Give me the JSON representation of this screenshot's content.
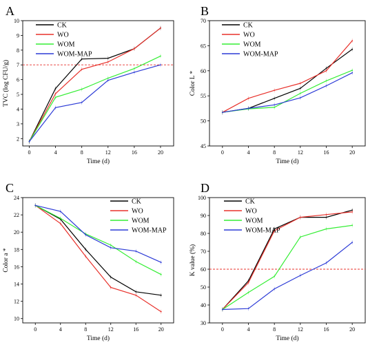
{
  "chart_data": [
    {
      "type": "line",
      "panel_label": "A",
      "x": [
        0,
        4,
        8,
        12,
        16,
        20
      ],
      "xlabel": "Time (d)",
      "ylabel": "TVC (log CFU/g)",
      "xlim": [
        -1,
        22
      ],
      "ylim": [
        1.5,
        10
      ],
      "xticks": [
        0,
        4,
        8,
        12,
        16,
        20
      ],
      "yticks": [
        2,
        3,
        4,
        5,
        6,
        7,
        8,
        9,
        10
      ],
      "reference_line": 7,
      "legend_position": "top-left",
      "series": [
        {
          "name": "CK",
          "color": "#000000",
          "values": [
            1.8,
            5.4,
            7.4,
            7.45,
            8.1,
            9.5
          ]
        },
        {
          "name": "WO",
          "color": "#e8302a",
          "values": [
            1.8,
            5.05,
            6.7,
            7.2,
            8.1,
            9.5
          ]
        },
        {
          "name": "WOM",
          "color": "#33ee33",
          "values": [
            1.8,
            4.8,
            5.35,
            6.1,
            6.75,
            7.6
          ]
        },
        {
          "name": "WOM-MAP",
          "color": "#2b3ad6",
          "values": [
            1.8,
            4.1,
            4.45,
            5.95,
            6.5,
            7.0
          ]
        }
      ]
    },
    {
      "type": "line",
      "panel_label": "B",
      "x": [
        0,
        4,
        8,
        12,
        16,
        20
      ],
      "xlabel": "Time (d)",
      "ylabel": "Color L *",
      "xlim": [
        -2,
        22
      ],
      "ylim": [
        45,
        70
      ],
      "xticks": [
        0,
        4,
        8,
        12,
        16,
        20
      ],
      "yticks": [
        45,
        50,
        55,
        60,
        65,
        70
      ],
      "legend_position": "top-left",
      "series": [
        {
          "name": "CK",
          "color": "#000000",
          "values": [
            51.7,
            52.5,
            54.5,
            56.5,
            60.5,
            64.3
          ]
        },
        {
          "name": "WO",
          "color": "#e8302a",
          "values": [
            51.7,
            54.5,
            56.1,
            57.5,
            60.0,
            66.0
          ]
        },
        {
          "name": "WOM",
          "color": "#33ee33",
          "values": [
            51.7,
            52.4,
            52.7,
            55.5,
            58.0,
            60.1
          ]
        },
        {
          "name": "WOM-MAP",
          "color": "#2b3ad6",
          "values": [
            51.7,
            52.5,
            53.2,
            54.6,
            57.0,
            59.6
          ]
        }
      ]
    },
    {
      "type": "line",
      "panel_label": "C",
      "x": [
        0,
        4,
        8,
        12,
        16,
        20
      ],
      "xlabel": "Time (d)",
      "ylabel": "Color a *",
      "xlim": [
        -2,
        22
      ],
      "ylim": [
        9.5,
        24
      ],
      "xticks": [
        0,
        4,
        8,
        12,
        16,
        20
      ],
      "yticks": [
        10,
        12,
        14,
        16,
        18,
        20,
        22,
        24
      ],
      "legend_position": "top-right",
      "series": [
        {
          "name": "CK",
          "color": "#000000",
          "values": [
            23.1,
            21.5,
            18.0,
            14.8,
            13.1,
            12.7
          ]
        },
        {
          "name": "WO",
          "color": "#e8302a",
          "values": [
            23.1,
            21.0,
            17.2,
            13.6,
            12.7,
            10.8
          ]
        },
        {
          "name": "WOM",
          "color": "#33ee33",
          "values": [
            23.1,
            21.6,
            19.8,
            18.5,
            16.6,
            15.1
          ]
        },
        {
          "name": "WOM-MAP",
          "color": "#2b3ad6",
          "values": [
            23.1,
            22.4,
            19.7,
            18.2,
            17.8,
            16.5
          ]
        }
      ]
    },
    {
      "type": "line",
      "panel_label": "D",
      "x": [
        0,
        4,
        8,
        12,
        16,
        20
      ],
      "xlabel": "Time (d)",
      "ylabel": "K value (%)",
      "xlim": [
        -2,
        22
      ],
      "ylim": [
        30,
        100
      ],
      "xticks": [
        0,
        4,
        8,
        12,
        16,
        20
      ],
      "yticks": [
        30,
        40,
        50,
        60,
        70,
        80,
        90,
        100
      ],
      "reference_line": 60,
      "legend_position": "top-left",
      "series": [
        {
          "name": "CK",
          "color": "#000000",
          "values": [
            37.5,
            53.5,
            82.5,
            89.0,
            89.0,
            93.0
          ]
        },
        {
          "name": "WO",
          "color": "#e8302a",
          "values": [
            37.5,
            52.5,
            81.5,
            89.0,
            90.5,
            92.0
          ]
        },
        {
          "name": "WOM",
          "color": "#33ee33",
          "values": [
            37.5,
            47.0,
            56.0,
            78.0,
            82.5,
            84.5
          ]
        },
        {
          "name": "WOM-MAP",
          "color": "#2b3ad6",
          "values": [
            37.5,
            38.0,
            49.0,
            56.5,
            63.5,
            75.0
          ]
        }
      ]
    }
  ]
}
